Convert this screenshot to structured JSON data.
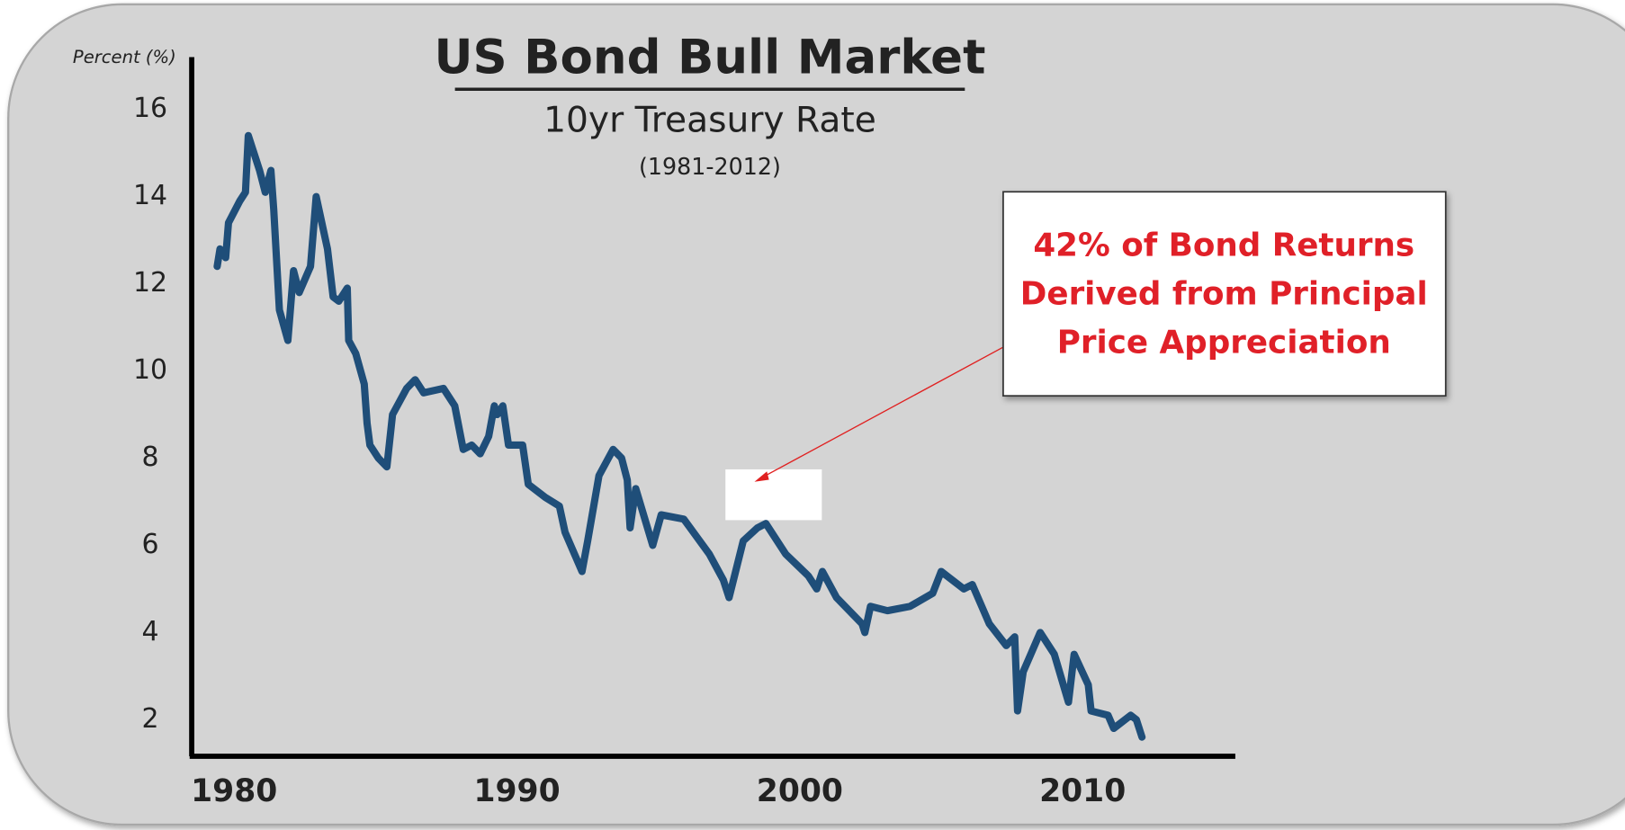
{
  "chart_data": {
    "type": "line",
    "title": "US Bond Bull Market",
    "subtitle": "10yr Treasury Rate",
    "date_range": "(1981-2012)",
    "ylabel": "Percent (%)",
    "annotation": [
      "42% of Bond Returns",
      "Derived from Principal",
      "Price Appreciation"
    ],
    "xlim": [
      1978.5,
      2015.4
    ],
    "xticks": [
      1980,
      1990,
      2000,
      2010
    ],
    "ylim": [
      1.16,
      17.2
    ],
    "yticks": [
      2,
      4,
      6,
      8,
      10,
      12,
      14,
      16
    ],
    "grid": false,
    "series": [
      {
        "name": "10yr Treasury Rate",
        "color": "#1f4e79",
        "x": [
          1979.4,
          1979.5,
          1979.7,
          1979.8,
          1980.2,
          1980.4,
          1980.5,
          1980.9,
          1981.1,
          1981.3,
          1981.4,
          1981.6,
          1981.9,
          1982.1,
          1982.3,
          1982.7,
          1982.9,
          1983.3,
          1983.5,
          1983.7,
          1984.0,
          1984.05,
          1984.3,
          1984.6,
          1984.7,
          1984.8,
          1985.1,
          1985.4,
          1985.6,
          1986.1,
          1986.4,
          1986.7,
          1987.4,
          1987.8,
          1988.1,
          1988.4,
          1988.7,
          1989.0,
          1989.2,
          1989.3,
          1989.5,
          1989.7,
          1990.2,
          1990.4,
          1991.0,
          1991.5,
          1991.7,
          1992.3,
          1992.5,
          1992.9,
          1993.4,
          1993.7,
          1993.9,
          1994.0,
          1994.2,
          1994.8,
          1995.1,
          1995.9,
          1996.8,
          1997.3,
          1997.5,
          1998.0,
          1998.5,
          1998.8,
          1999.5,
          2000.3,
          2000.6,
          2000.8,
          2001.3,
          2002.2,
          2002.3,
          2002.5,
          2003.1,
          2003.9,
          2004.7,
          2005.0,
          2005.8,
          2006.1,
          2006.7,
          2007.3,
          2007.6,
          2007.7,
          2007.9,
          2008.5,
          2009.0,
          2009.5,
          2009.7,
          2010.2,
          2010.3,
          2010.9,
          2011.1,
          2011.7,
          2011.9,
          2012.1
        ],
        "values": [
          12.4,
          12.8,
          12.6,
          13.4,
          13.9,
          14.1,
          15.4,
          14.6,
          14.1,
          14.6,
          13.7,
          11.4,
          10.7,
          12.3,
          11.8,
          12.4,
          14.0,
          12.8,
          11.7,
          11.6,
          11.9,
          10.7,
          10.4,
          9.7,
          8.8,
          8.3,
          8.0,
          7.8,
          9.0,
          9.6,
          9.8,
          9.5,
          9.6,
          9.2,
          8.2,
          8.3,
          8.1,
          8.5,
          9.2,
          9.0,
          9.2,
          8.3,
          8.3,
          7.4,
          7.1,
          6.9,
          6.3,
          5.4,
          6.1,
          7.6,
          8.2,
          8.0,
          7.5,
          6.4,
          7.3,
          6.0,
          6.7,
          6.6,
          5.8,
          5.2,
          4.8,
          6.1,
          6.4,
          6.5,
          5.8,
          5.3,
          5.0,
          5.4,
          4.8,
          4.2,
          4.0,
          4.6,
          4.5,
          4.6,
          4.9,
          5.4,
          5.0,
          5.1,
          4.2,
          3.7,
          3.9,
          2.2,
          3.1,
          4.0,
          3.5,
          2.4,
          3.5,
          2.8,
          2.2,
          2.1,
          1.8,
          2.1,
          2.0,
          1.6
        ]
      }
    ]
  }
}
